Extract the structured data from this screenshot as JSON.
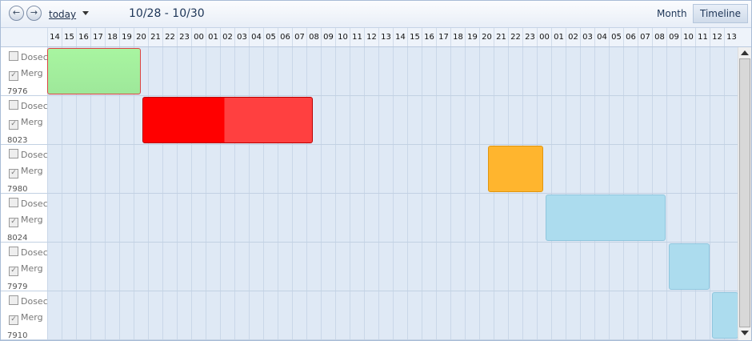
{
  "toolbar": {
    "today": "today",
    "range": "10/28 - 10/30",
    "views": [
      "Month",
      "Timeline"
    ]
  },
  "hours": [
    "14",
    "15",
    "16",
    "17",
    "18",
    "19",
    "20",
    "21",
    "22",
    "23",
    "00",
    "01",
    "02",
    "03",
    "04",
    "05",
    "06",
    "07",
    "08",
    "09",
    "10",
    "11",
    "12",
    "13",
    "14",
    "15",
    "16",
    "17",
    "18",
    "19",
    "20",
    "21",
    "22",
    "23",
    "00",
    "01",
    "02",
    "03",
    "04",
    "05",
    "06",
    "07",
    "08",
    "09",
    "10",
    "11",
    "12",
    "13"
  ],
  "resources": [
    {
      "id": "7976",
      "options": [
        "Dosec",
        "Merg"
      ]
    },
    {
      "id": "8023",
      "options": [
        "Dosec",
        "Merg"
      ]
    },
    {
      "id": "7980",
      "options": [
        "Dosec",
        "Merg"
      ]
    },
    {
      "id": "8024",
      "options": [
        "Dosec",
        "Merg"
      ]
    },
    {
      "id": "7979",
      "options": [
        "Dosec",
        "Merg"
      ]
    },
    {
      "id": "7910",
      "options": [
        "Dosec",
        "Merg"
      ]
    }
  ]
}
